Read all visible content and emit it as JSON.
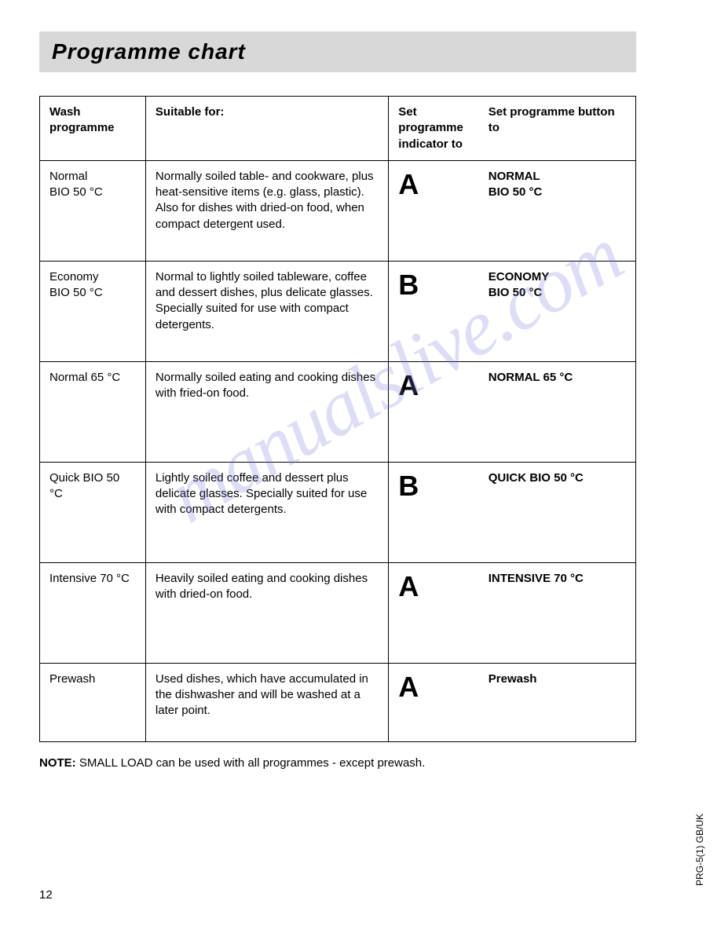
{
  "title": "Programme chart",
  "table": {
    "headers": {
      "col1": "Wash programme",
      "col2": "Suitable for:",
      "col3": "Set programme indicator to",
      "col4": "Set programme button to"
    },
    "rows": [
      {
        "wash": "Normal\nBIO 50 °C",
        "suitable": "Normally soiled table- and cookware, plus heat-sensitive items (e.g. glass, plastic). Also for dishes with dried-on food, when compact detergent used.",
        "indicator": "A",
        "button": "NORMAL\nBIO 50 °C"
      },
      {
        "wash": "Economy\nBIO 50 °C",
        "suitable": "Normal to lightly soiled tableware, coffee and dessert dishes, plus delicate glasses. Specially suited for use with compact detergents.",
        "indicator": "B",
        "button": "ECONOMY\nBIO 50 °C"
      },
      {
        "wash": "Normal 65 °C",
        "suitable": "Normally soiled eating and cooking dishes with fried-on food.",
        "indicator": "A",
        "button": "NORMAL 65 °C"
      },
      {
        "wash": "Quick BIO 50 °C",
        "suitable": "Lightly soiled coffee and dessert plus delicate glasses. Specially suited for use with compact detergents.",
        "indicator": "B",
        "button": "QUICK BIO 50 °C"
      },
      {
        "wash": "Intensive 70 °C",
        "suitable": "Heavily soiled eating and cooking dishes with dried-on food.",
        "indicator": "A",
        "button": "INTENSIVE 70 °C"
      },
      {
        "wash": "Prewash",
        "suitable": "Used dishes, which have accumulated in the dishwasher and will be washed at a later point.",
        "indicator": "A",
        "button": "Prewash"
      }
    ]
  },
  "note": {
    "label": "NOTE:",
    "text": " SMALL LOAD can be used with all programmes - except prewash."
  },
  "page_number": "12",
  "side_code": "PRG-5(1)   GB/UK",
  "watermark": "manualslive.com"
}
